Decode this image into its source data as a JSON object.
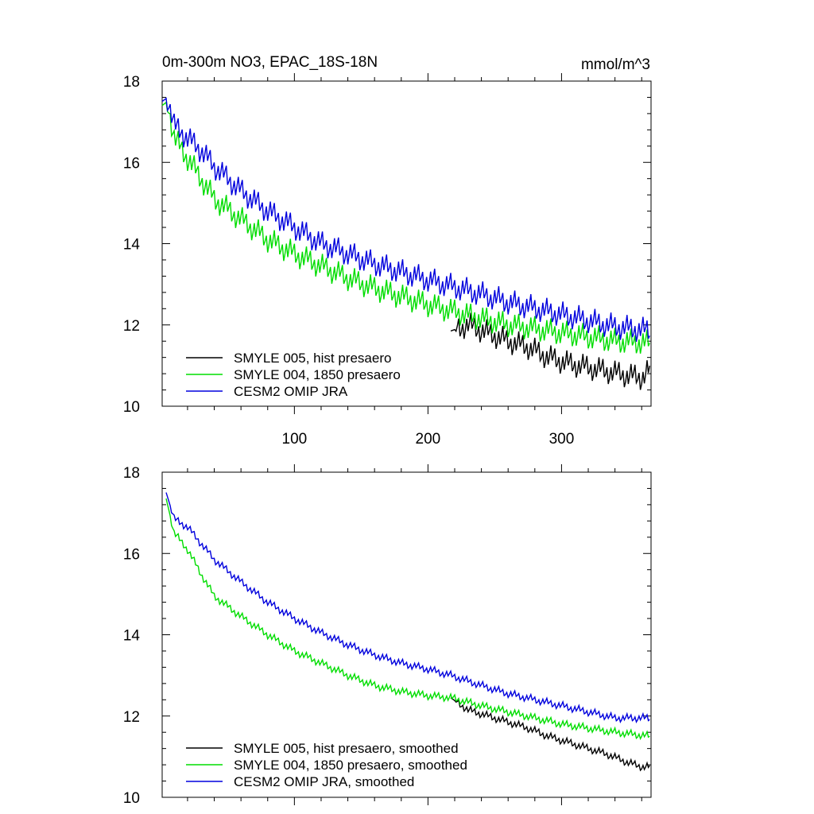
{
  "figure": {
    "title": "0m-300m NO3, EPAC_18S-18N",
    "units": "mmol/m^3"
  },
  "chart_data": [
    {
      "type": "line",
      "panel": "top",
      "x_range": [
        1,
        367
      ],
      "ylim": [
        10,
        18
      ],
      "y_ticks": [
        "10",
        "12",
        "14",
        "16",
        "18"
      ],
      "x_ticks": [
        "100",
        "200",
        "300"
      ],
      "legend_placement": "bottom-left",
      "series": [
        {
          "name": "SMYLE 005, hist presaero",
          "color": "#000000",
          "x_start": 217,
          "x": [
            217,
            230,
            245,
            260,
            275,
            290,
            305,
            320,
            335,
            350,
            360,
            366
          ],
          "y": [
            11.85,
            12.0,
            11.8,
            11.6,
            11.45,
            11.2,
            11.05,
            10.95,
            10.85,
            10.75,
            10.7,
            10.9
          ]
        },
        {
          "name": "SMYLE 004, 1850 presaero",
          "color": "#00dd00",
          "x": [
            1,
            5,
            10,
            20,
            30,
            40,
            60,
            80,
            100,
            120,
            140,
            160,
            180,
            200,
            217,
            240,
            260,
            280,
            300,
            320,
            340,
            366
          ],
          "y": [
            17.4,
            17.5,
            16.6,
            16.1,
            15.6,
            15.1,
            14.6,
            14.1,
            13.75,
            13.45,
            13.15,
            12.9,
            12.7,
            12.5,
            12.35,
            12.15,
            12.0,
            11.9,
            11.8,
            11.7,
            11.6,
            11.55
          ]
        },
        {
          "name": "CESM2 OMIP JRA",
          "color": "#0000dd",
          "x": [
            1,
            5,
            10,
            20,
            30,
            40,
            60,
            80,
            100,
            120,
            140,
            160,
            180,
            200,
            217,
            240,
            260,
            280,
            300,
            320,
            340,
            366
          ],
          "y": [
            17.5,
            17.6,
            16.9,
            16.6,
            16.3,
            15.9,
            15.3,
            14.8,
            14.4,
            14.0,
            13.75,
            13.5,
            13.3,
            13.1,
            12.95,
            12.75,
            12.55,
            12.4,
            12.25,
            12.1,
            11.95,
            11.85
          ]
        }
      ]
    },
    {
      "type": "line",
      "panel": "bottom",
      "x_range": [
        1,
        367
      ],
      "ylim": [
        10,
        18
      ],
      "y_ticks": [
        "10",
        "12",
        "14",
        "16",
        "18"
      ],
      "x_ticks": [],
      "legend_placement": "bottom-left",
      "series": [
        {
          "name": "SMYLE 005, hist presaero, smoothed",
          "color": "#000000",
          "x_start": 217,
          "x": [
            217,
            230,
            245,
            260,
            275,
            290,
            305,
            320,
            335,
            350,
            360,
            366
          ],
          "y": [
            12.45,
            12.15,
            12.0,
            11.85,
            11.7,
            11.5,
            11.35,
            11.2,
            11.05,
            10.85,
            10.75,
            10.75
          ]
        },
        {
          "name": "SMYLE 004, 1850 presaero, smoothed",
          "color": "#00dd00",
          "x": [
            4,
            10,
            20,
            30,
            40,
            60,
            80,
            100,
            120,
            140,
            160,
            180,
            200,
            217,
            240,
            260,
            280,
            300,
            320,
            340,
            366
          ],
          "y": [
            17.35,
            16.5,
            16.1,
            15.5,
            14.95,
            14.45,
            14.0,
            13.6,
            13.3,
            13.0,
            12.75,
            12.6,
            12.5,
            12.45,
            12.25,
            12.1,
            11.95,
            11.8,
            11.7,
            11.6,
            11.5
          ]
        },
        {
          "name": "CESM2 OMIP JRA, smoothed",
          "color": "#0000dd",
          "x": [
            4,
            10,
            20,
            30,
            40,
            60,
            80,
            100,
            120,
            140,
            160,
            180,
            200,
            217,
            240,
            260,
            280,
            300,
            320,
            340,
            366
          ],
          "y": [
            17.5,
            16.85,
            16.65,
            16.25,
            15.85,
            15.3,
            14.8,
            14.4,
            14.05,
            13.75,
            13.5,
            13.3,
            13.15,
            13.0,
            12.75,
            12.55,
            12.4,
            12.25,
            12.1,
            11.95,
            11.95
          ]
        }
      ]
    }
  ]
}
